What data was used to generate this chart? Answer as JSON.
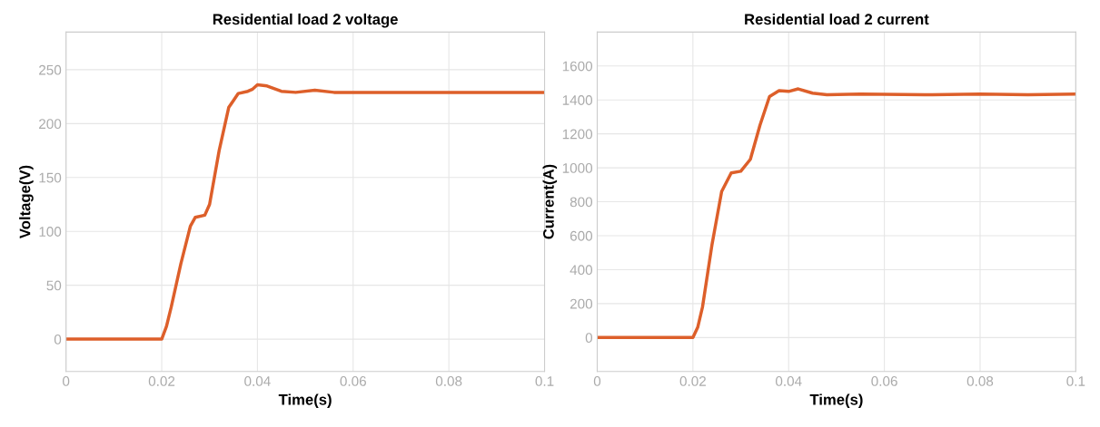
{
  "chart_data": [
    {
      "type": "line",
      "title": "Residential load 2 voltage",
      "xlabel": "Time(s)",
      "ylabel": "Voltage(V)",
      "x": [
        0,
        0.02,
        0.021,
        0.022,
        0.024,
        0.026,
        0.027,
        0.029,
        0.03,
        0.032,
        0.034,
        0.036,
        0.038,
        0.039,
        0.04,
        0.042,
        0.045,
        0.048,
        0.052,
        0.056,
        0.06,
        0.08,
        0.1
      ],
      "series": [
        {
          "color": "#dd5f2a",
          "values": [
            0,
            0,
            12,
            30,
            70,
            105,
            113,
            115,
            125,
            175,
            215,
            228,
            230,
            232,
            236,
            235,
            230,
            229,
            231,
            229,
            229,
            229,
            229
          ]
        }
      ],
      "xlim": [
        0,
        0.1
      ],
      "xticks": [
        0,
        0.02,
        0.04,
        0.06,
        0.08,
        0.1
      ],
      "ylim": [
        -30,
        285
      ],
      "yticks": [
        0,
        50,
        100,
        150,
        200,
        250
      ],
      "grid": true,
      "legend": false
    },
    {
      "type": "line",
      "title": "Residential load 2 current",
      "xlabel": "Time(s)",
      "ylabel": "Current(A)",
      "x": [
        0,
        0.02,
        0.021,
        0.022,
        0.024,
        0.026,
        0.028,
        0.03,
        0.032,
        0.034,
        0.036,
        0.038,
        0.04,
        0.042,
        0.045,
        0.048,
        0.055,
        0.07,
        0.08,
        0.09,
        0.1
      ],
      "series": [
        {
          "color": "#dd5f2a",
          "values": [
            0,
            0,
            60,
            180,
            550,
            860,
            970,
            980,
            1050,
            1250,
            1420,
            1455,
            1450,
            1465,
            1440,
            1430,
            1435,
            1430,
            1435,
            1430,
            1435
          ]
        }
      ],
      "xlim": [
        0,
        0.1
      ],
      "xticks": [
        0,
        0.02,
        0.04,
        0.06,
        0.08,
        0.1
      ],
      "ylim": [
        -200,
        1800
      ],
      "yticks": [
        0,
        200,
        400,
        600,
        800,
        1000,
        1200,
        1400,
        1600
      ],
      "grid": true,
      "legend": false
    }
  ]
}
